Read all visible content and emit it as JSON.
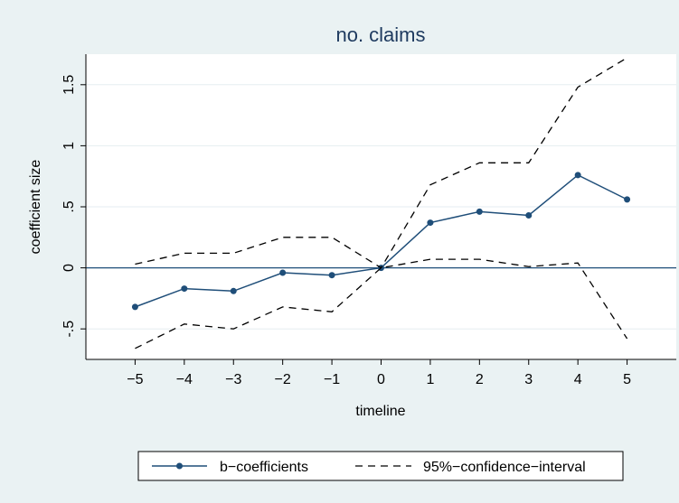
{
  "chart_data": {
    "type": "line",
    "title": "no. claims",
    "xlabel": "timeline",
    "ylabel": "coefficient size",
    "x": [
      -5,
      -4,
      -3,
      -2,
      -1,
      0,
      1,
      2,
      3,
      4,
      5
    ],
    "x_tick_labels": [
      "−5",
      "−4",
      "−3",
      "−2",
      "−1",
      "0",
      "1",
      "2",
      "3",
      "4",
      "5"
    ],
    "y_ticks": [
      -0.5,
      0,
      0.5,
      1,
      1.5
    ],
    "y_tick_labels": [
      "-.5",
      "0",
      ".5",
      "1",
      "1.5"
    ],
    "xlim": [
      -6,
      6
    ],
    "ylim": [
      -0.75,
      1.75
    ],
    "grid": "horizontal",
    "reference_line": 0,
    "series": [
      {
        "name": "b−coefficients",
        "style": "solid-with-markers",
        "color": "#1f4e79",
        "values": [
          -0.32,
          -0.17,
          -0.19,
          -0.04,
          -0.06,
          0.0,
          0.37,
          0.46,
          0.43,
          0.76,
          0.56
        ]
      },
      {
        "name": "95%−confidence−interval",
        "style": "dashed",
        "color": "#000000",
        "band": "upper",
        "values": [
          0.03,
          0.12,
          0.12,
          0.25,
          0.25,
          0.0,
          0.68,
          0.86,
          0.86,
          1.48,
          1.72
        ]
      },
      {
        "name": "95%−confidence−interval",
        "style": "dashed",
        "color": "#000000",
        "band": "lower",
        "values": [
          -0.66,
          -0.46,
          -0.5,
          -0.32,
          -0.36,
          0.0,
          0.07,
          0.07,
          0.01,
          0.04,
          -0.58
        ]
      }
    ],
    "legend": {
      "position": "bottom",
      "entries": [
        "b−coefficients",
        "95%−confidence−interval"
      ]
    }
  },
  "colors": {
    "background": "#eaf2f3",
    "plot_area": "#ffffff",
    "title": "#1e3a5f",
    "gridline": "#e6eef0",
    "reference_line": "#1f4e79"
  }
}
